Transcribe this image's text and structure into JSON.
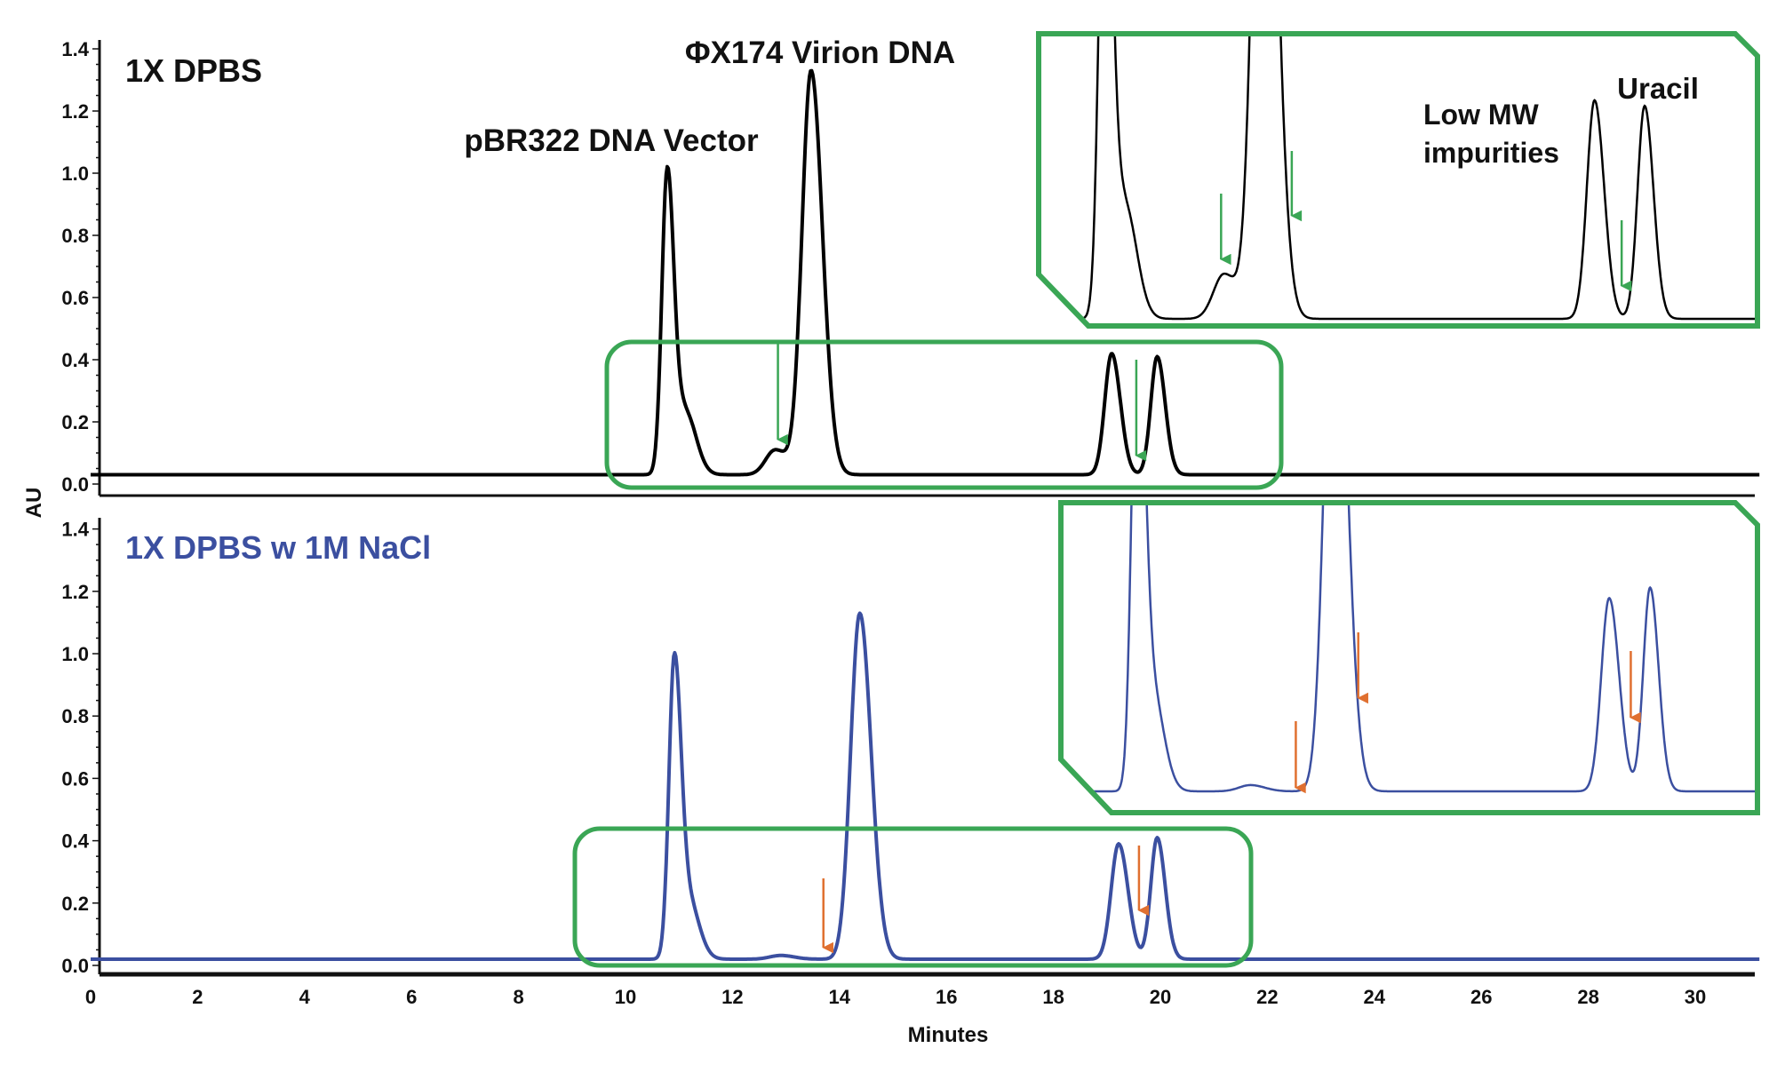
{
  "chart_data": [
    {
      "type": "line",
      "title": "1X DPBS",
      "xlabel": "Minutes",
      "ylabel": "AU",
      "xlim": [
        0,
        31.2
      ],
      "ylim": [
        0,
        1.4
      ],
      "x_ticks": [
        "0",
        "2",
        "4",
        "6",
        "8",
        "10",
        "12",
        "14",
        "16",
        "18",
        "20",
        "22",
        "24",
        "26",
        "28",
        "30"
      ],
      "y_ticks": [
        "0.0",
        "0.2",
        "0.4",
        "0.6",
        "0.8",
        "1.0",
        "1.2",
        "1.4"
      ],
      "color": "#000000",
      "baseline": 0.03,
      "peaks": [
        {
          "t": 10.78,
          "h": 0.97,
          "w": 0.1
        },
        {
          "t": 11.12,
          "h": 0.2,
          "w": 0.16
        },
        {
          "t": 12.8,
          "h": 0.08,
          "w": 0.18
        },
        {
          "t": 13.47,
          "h": 1.3,
          "w": 0.17
        },
        {
          "t": 19.09,
          "h": 0.39,
          "w": 0.13
        },
        {
          "t": 19.94,
          "h": 0.38,
          "w": 0.12
        }
      ],
      "annotations": {
        "peak1": "pBR322 DNA Vector",
        "peak2": "ΦX174 Virion DNA",
        "impurities_line1": "Low MW",
        "impurities_line2": "impurities",
        "uracil": "Uracil"
      },
      "arrow_times": [
        12.85,
        19.55
      ],
      "inset_arrow_times": [
        12.75,
        13.95,
        19.55
      ],
      "arrow_color": "#3aa655"
    },
    {
      "type": "line",
      "title": "1X DPBS w 1M NaCl",
      "xlabel": "Minutes",
      "ylabel": "AU",
      "xlim": [
        0,
        31.2
      ],
      "ylim": [
        0,
        1.4
      ],
      "y_ticks": [
        "0.0",
        "0.2",
        "0.4",
        "0.6",
        "0.8",
        "1.0",
        "1.2",
        "1.4"
      ],
      "color": "#3b4fa0",
      "baseline": 0.02,
      "peaks": [
        {
          "t": 10.91,
          "h": 0.93,
          "w": 0.1
        },
        {
          "t": 11.17,
          "h": 0.19,
          "w": 0.16
        },
        {
          "t": 12.9,
          "h": 0.012,
          "w": 0.2
        },
        {
          "t": 14.38,
          "h": 1.11,
          "w": 0.17
        },
        {
          "t": 19.22,
          "h": 0.37,
          "w": 0.14
        },
        {
          "t": 19.94,
          "h": 0.39,
          "w": 0.12
        }
      ],
      "arrow_times": [
        13.7,
        19.6
      ],
      "inset_arrow_times": [
        13.7,
        14.8,
        19.6
      ],
      "arrow_color": "#e07030"
    }
  ],
  "highlight_color": "#3aa655"
}
